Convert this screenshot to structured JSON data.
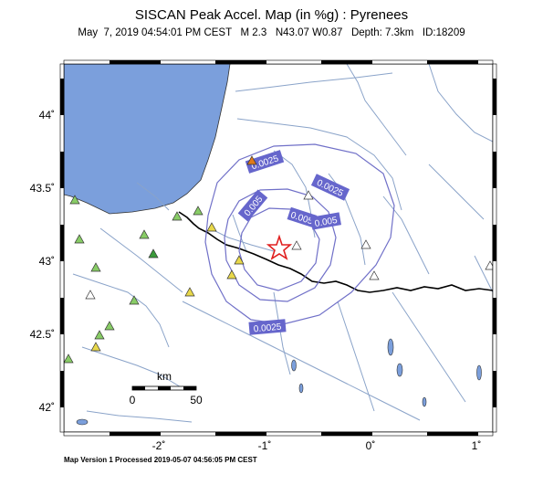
{
  "header": {
    "title": "SISCAN Peak Accel. Map (in %g) : Pyrenees",
    "subtitle": "May  7, 2019 04:54:01 PM CEST   M 2.3   N43.07 W0.87   Depth: 7.3km   ID:18209"
  },
  "footer": {
    "processed": "Map Version 1 Processed 2019-05-07 04:56:05 PM CEST"
  },
  "axes": {
    "lat_labels": [
      "44˚",
      "43.5˚",
      "43˚",
      "42.5˚",
      "42˚"
    ],
    "lon_labels": [
      "-2˚",
      "-1˚",
      "0˚",
      "1˚"
    ]
  },
  "scale_bar": {
    "unit": "km",
    "start": "0",
    "end": "50"
  },
  "contours": {
    "labels": [
      "0.0025",
      "0.0025",
      "0.005",
      "0.005",
      "0.005",
      "0.0025"
    ]
  },
  "colors": {
    "sea": "#7b9fdc",
    "rivers": "#8aa3c9",
    "contour": "#7070c8",
    "label_box": "#6666cc",
    "border": "#000000",
    "epicenter": "#e02020"
  }
}
